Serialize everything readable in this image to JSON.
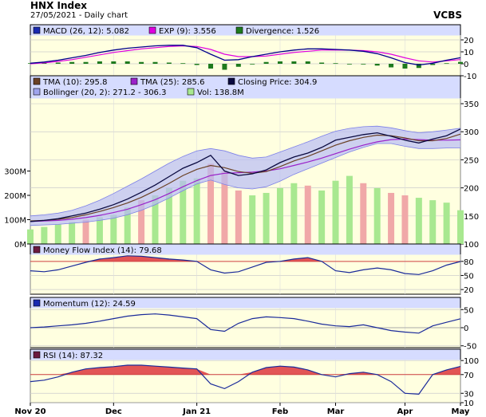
{
  "header": {
    "title": "HNX Index",
    "subtitle": "27/05/2021 - Daily chart",
    "brand": "VCBS"
  },
  "colors": {
    "panel_bg": "#ffffe0",
    "legend_bg": "#d6dcff",
    "grid": "#cccccc",
    "macd": "#00008b",
    "signal": "#e000e0",
    "divergence": "#1e7a1e",
    "tma10": "#6b4226",
    "tma25": "#9a22c9",
    "close": "#0a0a40",
    "bollinger_fill": "#b8bcf5",
    "bollinger_line": "#7d80e8",
    "vol_up": "#a8e890",
    "vol_down": "#f0a8a8",
    "indicator_line": "#1a2a9a",
    "overbought_fill": "#e25555",
    "threshold": "#d04040"
  },
  "chart_data": [
    {
      "type": "line",
      "panel": "macd",
      "legend": [
        {
          "label": "MACD (26, 12): 5.082",
          "color": "#1a2ab0"
        },
        {
          "label": "EXP (9): 3.556",
          "color": "#e000e0"
        },
        {
          "label": "Divergence: 1.526",
          "color": "#1e7a1e"
        }
      ],
      "ylim": [
        -10,
        24
      ],
      "yticks": [
        20,
        10,
        0,
        -10
      ],
      "series": [
        {
          "values": [
            0.5,
            1.5,
            3,
            5,
            7,
            9.5,
            11.5,
            13,
            14,
            15,
            15.5,
            15.5,
            13.5,
            8,
            3,
            3.5,
            6,
            8,
            10,
            11.5,
            12.5,
            12.5,
            12,
            11.5,
            10.5,
            8.5,
            5,
            1,
            -1,
            0.5,
            3,
            5.082
          ]
        },
        {
          "values": [
            0,
            0.8,
            2,
            3.5,
            5.5,
            7.5,
            9.5,
            11,
            12.5,
            13.5,
            14.5,
            15,
            14.5,
            12,
            8,
            6,
            6,
            6.5,
            8,
            9.5,
            10.5,
            11.5,
            11.5,
            11.5,
            11,
            10,
            8,
            5,
            2.5,
            1.5,
            2.5,
            3.556
          ]
        },
        {
          "values": [
            0.5,
            0.7,
            1,
            1.5,
            1.5,
            2,
            2,
            2,
            1.5,
            1.5,
            1,
            0.5,
            -1,
            -4,
            -5,
            -2.5,
            0,
            1.5,
            2,
            2,
            2,
            1,
            0.5,
            0,
            -0.5,
            -1.5,
            -3,
            -4,
            -3.5,
            -1,
            0.5,
            1.526
          ]
        }
      ]
    },
    {
      "type": "line",
      "panel": "price",
      "legend": [
        {
          "label": "TMA (10): 295.8",
          "color": "#6b4226"
        },
        {
          "label": "TMA (25): 285.6",
          "color": "#9a22c9"
        },
        {
          "label": "Closing Price: 304.9",
          "color": "#0a0a40"
        },
        {
          "label": "Bollinger (20, 2): 271.2 - 306.3",
          "color": "#9fa4ee"
        },
        {
          "label": "Vol: 138.8M",
          "color": "#a8e890"
        }
      ],
      "ylim": [
        100,
        360
      ],
      "yticks": [
        350,
        300,
        250,
        200,
        150,
        100
      ],
      "vol_ticks": [
        "300M",
        "200M",
        "100M",
        "0M"
      ],
      "vol_lim": [
        0,
        600
      ],
      "close": [
        140,
        142,
        145,
        150,
        155,
        162,
        170,
        180,
        192,
        205,
        220,
        235,
        245,
        258,
        230,
        222,
        225,
        232,
        245,
        255,
        262,
        272,
        285,
        290,
        295,
        298,
        292,
        285,
        280,
        287,
        293,
        304.9
      ],
      "tma10": [
        141,
        142,
        144,
        147,
        152,
        158,
        165,
        173,
        183,
        195,
        208,
        222,
        233,
        240,
        236,
        229,
        226,
        229,
        238,
        248,
        256,
        266,
        276,
        284,
        290,
        294,
        293,
        289,
        284,
        284,
        288,
        295.8
      ],
      "tma25": [
        140,
        141,
        142,
        144,
        147,
        151,
        156,
        162,
        170,
        179,
        190,
        202,
        213,
        222,
        226,
        227,
        228,
        230,
        234,
        240,
        246,
        253,
        261,
        269,
        276,
        282,
        286,
        287,
        286,
        285,
        285,
        285.6
      ],
      "boll_upper": [
        150,
        152,
        155,
        160,
        168,
        178,
        190,
        203,
        216,
        230,
        244,
        256,
        266,
        270,
        266,
        258,
        253,
        255,
        264,
        273,
        282,
        292,
        301,
        306,
        309,
        310,
        307,
        302,
        298,
        300,
        303,
        306.3
      ],
      "boll_lower": [
        133,
        134,
        135,
        137,
        139,
        142,
        146,
        152,
        160,
        170,
        182,
        195,
        207,
        214,
        206,
        200,
        198,
        202,
        212,
        224,
        234,
        244,
        254,
        264,
        272,
        279,
        279,
        274,
        270,
        270,
        271,
        271.2
      ],
      "volume": [
        60,
        70,
        80,
        90,
        100,
        110,
        120,
        150,
        180,
        200,
        230,
        260,
        270,
        330,
        300,
        220,
        200,
        210,
        230,
        250,
        240,
        220,
        260,
        280,
        250,
        230,
        210,
        200,
        190,
        180,
        170,
        138.8
      ],
      "volume_up": [
        true,
        true,
        true,
        true,
        false,
        true,
        true,
        true,
        false,
        true,
        true,
        true,
        true,
        false,
        false,
        false,
        true,
        true,
        true,
        true,
        false,
        true,
        true,
        true,
        false,
        true,
        false,
        false,
        true,
        true,
        true,
        true
      ]
    },
    {
      "type": "line",
      "panel": "mfi",
      "legend": [
        {
          "label": "Money Flow Index (14): 79.68",
          "color": "#6b1a40"
        }
      ],
      "ylim": [
        10,
        95
      ],
      "yticks": [
        80,
        50,
        20
      ],
      "threshold": 80,
      "values": [
        60,
        58,
        62,
        70,
        78,
        85,
        88,
        92,
        91,
        88,
        85,
        83,
        80,
        62,
        55,
        58,
        68,
        78,
        80,
        85,
        88,
        80,
        60,
        56,
        62,
        66,
        62,
        54,
        52,
        60,
        72,
        79.68
      ]
    },
    {
      "type": "line",
      "panel": "momentum",
      "legend": [
        {
          "label": "Momentum (12): 24.59",
          "color": "#1a2ab0"
        }
      ],
      "ylim": [
        -55,
        55
      ],
      "yticks": [
        50,
        0,
        -50
      ],
      "values": [
        0,
        2,
        5,
        8,
        12,
        18,
        25,
        32,
        36,
        38,
        35,
        30,
        25,
        -5,
        -10,
        12,
        25,
        30,
        28,
        25,
        18,
        10,
        5,
        3,
        8,
        0,
        -8,
        -12,
        -15,
        5,
        15,
        24.59
      ]
    },
    {
      "type": "line",
      "panel": "rsi",
      "legend": [
        {
          "label": "RSI (14): 87.32",
          "color": "#6b1a40"
        }
      ],
      "ylim": [
        10,
        102
      ],
      "yticks": [
        100,
        70,
        30,
        10
      ],
      "threshold": 70,
      "values": [
        55,
        58,
        65,
        75,
        82,
        85,
        87,
        90,
        90,
        88,
        86,
        84,
        82,
        50,
        40,
        55,
        75,
        85,
        88,
        86,
        80,
        70,
        65,
        72,
        75,
        70,
        55,
        30,
        28,
        70,
        80,
        87.32
      ],
      "xlabels": [
        "Nov 20",
        "Dec",
        "Jan 21",
        "Feb",
        "Mar",
        "Apr",
        "May"
      ],
      "xlabel_pos": [
        0,
        6,
        12,
        18,
        22,
        27,
        31
      ]
    }
  ]
}
